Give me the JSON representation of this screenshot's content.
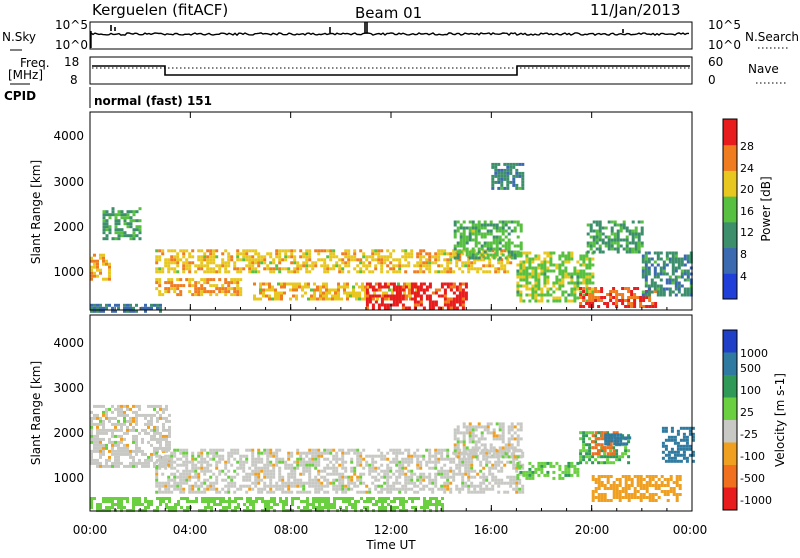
{
  "header": {
    "station": "Kerguelen (fitACF)",
    "beam": "Beam 01",
    "date": "11/Jan/2013"
  },
  "noise_panel": {
    "left_label": "N.Sky",
    "right_label": "N.Search",
    "left_ticks": [
      "10^5",
      "10^0"
    ],
    "right_ticks": [
      "10^5",
      "10^0"
    ]
  },
  "freq_panel": {
    "left_label_1": "Freq.",
    "left_label_2": "[MHz]",
    "right_label": "Nave",
    "left_ticks": [
      "18",
      "8"
    ],
    "right_ticks": [
      "60",
      "0"
    ]
  },
  "cpid_panel": {
    "label": "CPID",
    "mode": "normal (fast) 151"
  },
  "axes": {
    "ylabel": "Slant Range [km]",
    "xlabel": "Time UT",
    "yticks": [
      "1000",
      "2000",
      "3000",
      "4000"
    ],
    "xticks": [
      "00:00",
      "04:00",
      "08:00",
      "12:00",
      "16:00",
      "20:00",
      "00:00"
    ]
  },
  "power_colorbar": {
    "label": "Power [dB]",
    "ticks": [
      "4",
      "8",
      "12",
      "16",
      "20",
      "24",
      "28"
    ],
    "colors": [
      "#1f3fd8",
      "#3c6ab0",
      "#3d8f6c",
      "#58c040",
      "#e8c820",
      "#f07c20",
      "#e81c1c"
    ]
  },
  "velocity_colorbar": {
    "label": "Velocity [m s-1]",
    "ticks": [
      "1000",
      "500",
      "100",
      "25",
      "-25",
      "-100",
      "-500",
      "-1000"
    ],
    "colors": [
      "#2040c8",
      "#2f7aa0",
      "#2f9a58",
      "#6ad040",
      "#c8c8c4",
      "#f0a020",
      "#f07020",
      "#e81c1c"
    ]
  },
  "chart_data": [
    {
      "type": "heatmap",
      "name": "power",
      "x_range_hours": [
        0,
        24
      ],
      "ylim_km": [
        180,
        4650
      ],
      "value_unit": "dB",
      "value_range": [
        0,
        30
      ],
      "regions": [
        {
          "t": [
            0.0,
            0.8
          ],
          "r": [
            900,
            1450
          ],
          "v": 22
        },
        {
          "t": [
            0.0,
            2.8
          ],
          "r": [
            180,
            320
          ],
          "v": 8
        },
        {
          "t": [
            0.5,
            2.0
          ],
          "r": [
            1800,
            2500
          ],
          "v": 12
        },
        {
          "t": [
            2.6,
            6.0
          ],
          "r": [
            500,
            900
          ],
          "v": 22
        },
        {
          "t": [
            2.6,
            16.8
          ],
          "r": [
            1050,
            1550
          ],
          "v": 20
        },
        {
          "t": [
            6.5,
            13.0
          ],
          "r": [
            420,
            800
          ],
          "v": 20
        },
        {
          "t": [
            11.0,
            15.0
          ],
          "r": [
            250,
            800
          ],
          "v": 28
        },
        {
          "t": [
            14.5,
            17.2
          ],
          "r": [
            1350,
            2200
          ],
          "v": 14
        },
        {
          "t": [
            16.0,
            17.2
          ],
          "r": [
            2900,
            3500
          ],
          "v": 10
        },
        {
          "t": [
            17.0,
            20.0
          ],
          "r": [
            400,
            1500
          ],
          "v": 16
        },
        {
          "t": [
            19.5,
            22.5
          ],
          "r": [
            250,
            700
          ],
          "v": 26
        },
        {
          "t": [
            19.8,
            22.0
          ],
          "r": [
            1500,
            2200
          ],
          "v": 12
        },
        {
          "t": [
            22.0,
            24.0
          ],
          "r": [
            500,
            1500
          ],
          "v": 10
        }
      ]
    },
    {
      "type": "heatmap",
      "name": "velocity",
      "x_range_hours": [
        0,
        24
      ],
      "ylim_km": [
        180,
        4650
      ],
      "value_unit": "m s-1",
      "value_range": [
        -1000,
        1000
      ],
      "regions": [
        {
          "t": [
            0.0,
            3.2
          ],
          "r": [
            1200,
            2600
          ],
          "v": 0
        },
        {
          "t": [
            2.6,
            17.2
          ],
          "r": [
            600,
            1600
          ],
          "v": 0
        },
        {
          "t": [
            0.0,
            14.0
          ],
          "r": [
            180,
            500
          ],
          "v": 60
        },
        {
          "t": [
            14.5,
            17.2
          ],
          "r": [
            1400,
            2200
          ],
          "v": 0
        },
        {
          "t": [
            17.0,
            19.5
          ],
          "r": [
            900,
            1300
          ],
          "v": 80
        },
        {
          "t": [
            19.5,
            21.5
          ],
          "r": [
            1300,
            2000
          ],
          "v": 100
        },
        {
          "t": [
            20.0,
            21.0
          ],
          "r": [
            1500,
            2000
          ],
          "v": -300
        },
        {
          "t": [
            20.5,
            21.5
          ],
          "r": [
            1700,
            1950
          ],
          "v": 700
        },
        {
          "t": [
            20.0,
            23.5
          ],
          "r": [
            400,
            1000
          ],
          "v": -60
        },
        {
          "t": [
            22.8,
            24.0
          ],
          "r": [
            1300,
            2100
          ],
          "v": 600
        }
      ]
    }
  ]
}
